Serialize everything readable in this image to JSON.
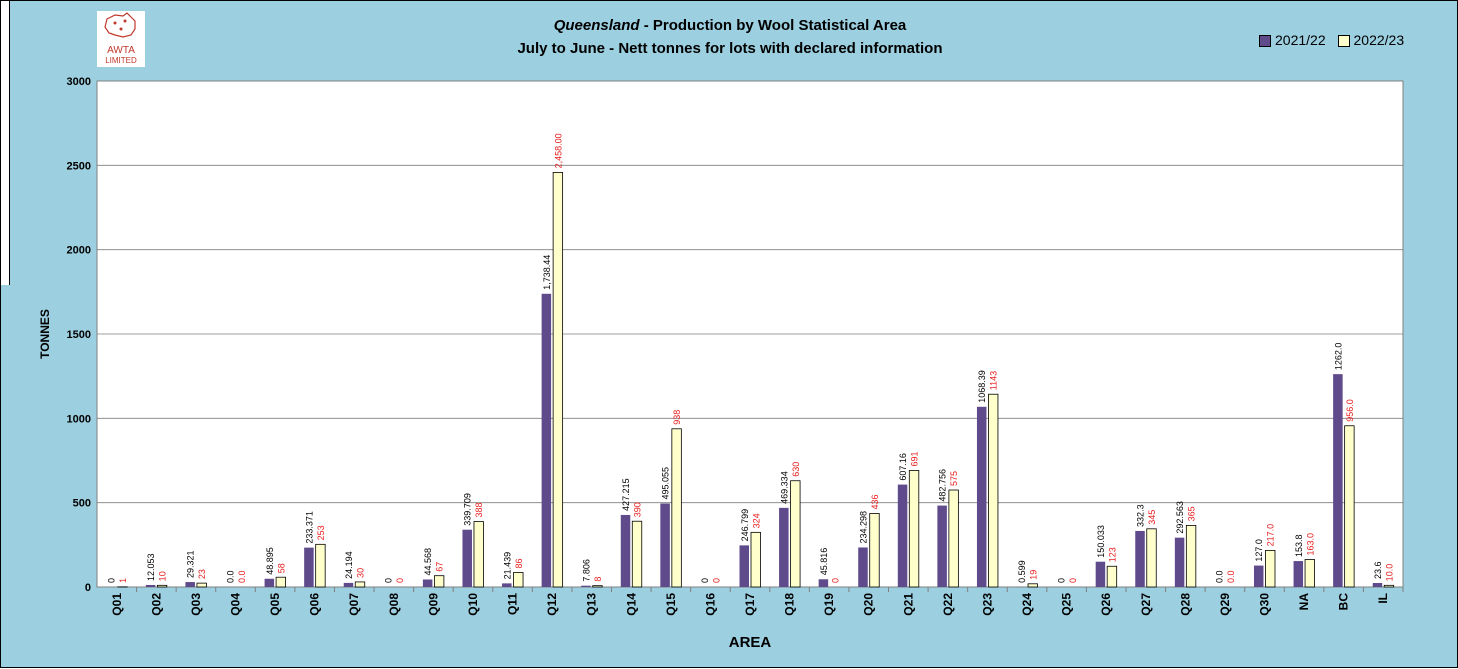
{
  "chart_data": {
    "type": "bar",
    "title_italic": "Queensland",
    "title_rest": " - Production by Wool Statistical Area",
    "subtitle": "July to June - Nett tonnes for lots with declared information",
    "xlabel": "AREA",
    "ylabel": "TONNES",
    "ylim": [
      0,
      3000
    ],
    "yticks": [
      "0",
      "500",
      "1000",
      "1500",
      "2000",
      "2500",
      "3000"
    ],
    "grid": true,
    "legend_position": "top-right",
    "categories": [
      "Q01",
      "Q02",
      "Q03",
      "Q04",
      "Q05",
      "Q06",
      "Q07",
      "Q08",
      "Q09",
      "Q10",
      "Q11",
      "Q12",
      "Q13",
      "Q14",
      "Q15",
      "Q16",
      "Q17",
      "Q18",
      "Q19",
      "Q20",
      "Q21",
      "Q22",
      "Q23",
      "Q24",
      "Q25",
      "Q26",
      "Q27",
      "Q28",
      "Q29",
      "Q30",
      "NA",
      "BC",
      "IL"
    ],
    "series": [
      {
        "name": "2021/22",
        "color": "#5f4a8b",
        "values": [
          0,
          12.053,
          29.321,
          0,
          48.895,
          233.371,
          24.194,
          0,
          44.568,
          339.709,
          21.439,
          1738.44,
          7.806,
          427.215,
          495.055,
          0,
          246.799,
          469.334,
          45.816,
          234.298,
          607.16,
          482.756,
          1068.39,
          0.599,
          0,
          150.033,
          332.3,
          292.563,
          0,
          127.0,
          153.8,
          1262.0,
          23.6
        ],
        "labels": [
          "0",
          "12.053",
          "29.321",
          "0.0",
          "48.895",
          "233.371",
          "24.194",
          "0",
          "44.568",
          "339.709",
          "21.439",
          "1,738.44",
          "7.806",
          "427.215",
          "495.055",
          "0",
          "246.799",
          "469.334",
          "45.816",
          "234.298",
          "607.16",
          "482.756",
          "1068.39",
          "0.599",
          "0",
          "150.033",
          "332.3",
          "292.563",
          "0.0",
          "127.0",
          "153.8",
          "1262.0",
          "23.6"
        ]
      },
      {
        "name": "2022/23",
        "color": "#ffffcc",
        "values": [
          1,
          10,
          23,
          0,
          58,
          253,
          30,
          0,
          67,
          388,
          86,
          2458,
          8,
          390,
          938,
          0,
          324,
          630,
          0,
          436,
          691,
          575,
          1143,
          19,
          0,
          123,
          345,
          365,
          0,
          217,
          163,
          956,
          10
        ],
        "labels": [
          "1",
          "10",
          "23",
          "0.0",
          "58",
          "253",
          "30",
          "0",
          "67",
          "388",
          "86",
          "2,458.00",
          "8",
          "390",
          "938",
          "0",
          "324",
          "630",
          "0",
          "436",
          "691",
          "575",
          "1143",
          "19",
          "0",
          "123",
          "345",
          "365",
          "0.0",
          "217.0",
          "163.0",
          "956.0",
          "10.0"
        ]
      }
    ]
  },
  "logo": {
    "text_top": "AWTA",
    "text_bottom": "LIMITED"
  }
}
